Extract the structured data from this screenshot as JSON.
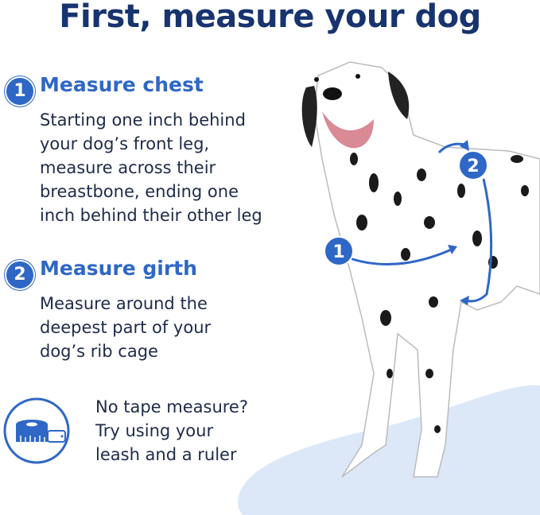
{
  "title": "First, measure your dog",
  "steps": [
    {
      "number": "1",
      "heading": "Measure chest",
      "lines": [
        "Starting one inch behind",
        "your dog’s front leg,",
        "measure across their",
        "breastbone, ending one",
        "inch behind their other leg"
      ]
    },
    {
      "number": "2",
      "heading": "Measure girth",
      "lines": [
        "Measure around the",
        "deepest part of your",
        "dog’s rib cage"
      ]
    }
  ],
  "tip": {
    "icon": "tape-measure-icon",
    "lines": [
      "No tape measure?",
      "Try using your",
      "leash and a ruler"
    ]
  },
  "markers": {
    "chest": "1",
    "girth": "2"
  },
  "colors": {
    "title": "#17346f",
    "accent": "#2f67c6",
    "floor": "#dce8f8"
  }
}
